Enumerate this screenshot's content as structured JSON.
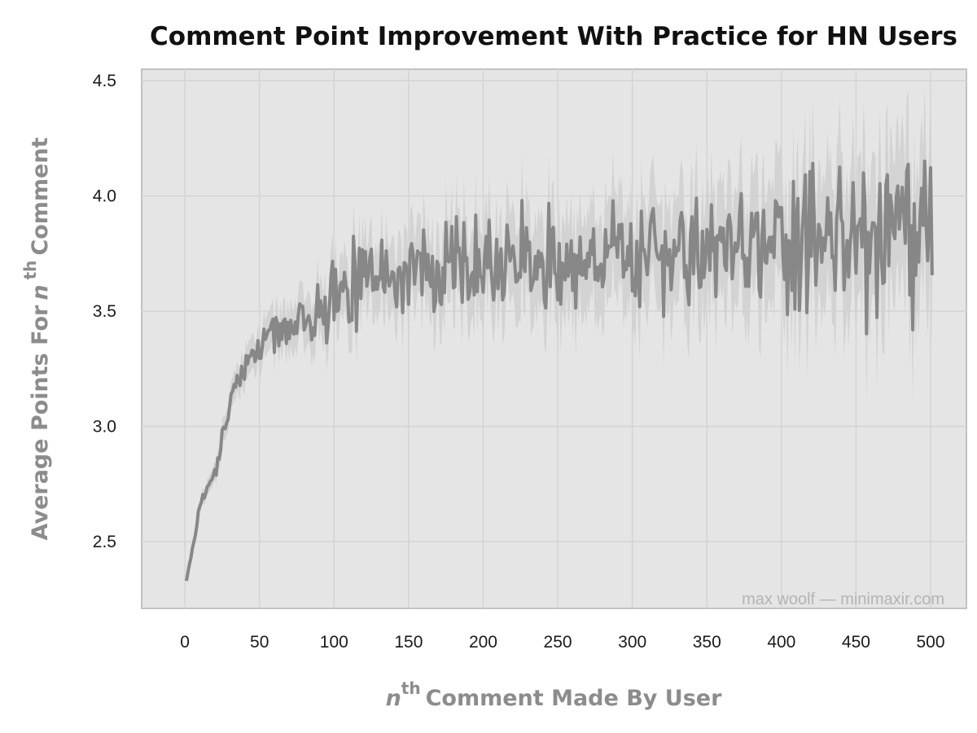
{
  "title": "Comment Point Improvement With Practice for HN Users",
  "watermark": "max woolf — minimaxir.com",
  "chart_data": {
    "type": "line",
    "title": "Comment Point Improvement With Practice for HN Users",
    "xlabel": {
      "n": "n",
      "sup": "th",
      "rest": "Comment Made By User"
    },
    "ylabel": {
      "prefix": "Average Points For",
      "n": "n",
      "sup": "th",
      "suffix": "Comment"
    },
    "xlim": [
      -29,
      524
    ],
    "ylim": [
      2.21,
      4.55
    ],
    "xticks": [
      0,
      50,
      100,
      150,
      200,
      250,
      300,
      350,
      400,
      450,
      500
    ],
    "xtick_labels": [
      "0",
      "50",
      "100",
      "150",
      "200",
      "250",
      "300",
      "350",
      "400",
      "450",
      "500"
    ],
    "yticks": [
      2.5,
      3.0,
      3.5,
      4.0,
      4.5
    ],
    "ytick_labels": [
      "2.5",
      "3.0",
      "3.5",
      "4.0",
      "4.5"
    ],
    "grid": true,
    "legend": "none",
    "colors": {
      "line": "#878787",
      "band": "#d0d0d0",
      "panel": "#e5e5e5",
      "grid": "#d4d4d4",
      "border": "#c2c2c2"
    },
    "series": [
      {
        "x_start": 1,
        "x_step": 10,
        "values": [
          2.33,
          2.68,
          2.82,
          3.12,
          3.28,
          3.35,
          3.4,
          3.43,
          3.47,
          3.51,
          3.57,
          3.6,
          3.62,
          3.64,
          3.66,
          3.68,
          3.69,
          3.7,
          3.7,
          3.71,
          3.71,
          3.72,
          3.72,
          3.72,
          3.73,
          3.73,
          3.73,
          3.74,
          3.74,
          3.74,
          3.74,
          3.75,
          3.75,
          3.75,
          3.76,
          3.76,
          3.76,
          3.77,
          3.77,
          3.78,
          3.78,
          3.79,
          3.8,
          3.81,
          3.82,
          3.82,
          3.82,
          3.81,
          3.81,
          3.81,
          3.81
        ],
        "noise": [
          0.0,
          0.02,
          0.03,
          0.04,
          0.05,
          0.06,
          0.07,
          0.08,
          0.09,
          0.1,
          0.11,
          0.12,
          0.12,
          0.13,
          0.13,
          0.14,
          0.14,
          0.14,
          0.15,
          0.15,
          0.15,
          0.15,
          0.15,
          0.16,
          0.16,
          0.16,
          0.16,
          0.16,
          0.17,
          0.17,
          0.17,
          0.17,
          0.17,
          0.17,
          0.17,
          0.18,
          0.18,
          0.18,
          0.18,
          0.18,
          0.19,
          0.19,
          0.2,
          0.21,
          0.22,
          0.22,
          0.22,
          0.22,
          0.22,
          0.22,
          0.22
        ],
        "band_halfwidth": [
          0.02,
          0.03,
          0.04,
          0.06,
          0.07,
          0.08,
          0.09,
          0.1,
          0.11,
          0.12,
          0.13,
          0.14,
          0.15,
          0.15,
          0.16,
          0.17,
          0.17,
          0.18,
          0.18,
          0.19,
          0.19,
          0.19,
          0.2,
          0.2,
          0.2,
          0.21,
          0.21,
          0.21,
          0.22,
          0.22,
          0.22,
          0.23,
          0.23,
          0.23,
          0.24,
          0.24,
          0.25,
          0.25,
          0.26,
          0.26,
          0.27,
          0.27,
          0.28,
          0.29,
          0.3,
          0.3,
          0.31,
          0.31,
          0.32,
          0.32,
          0.33
        ]
      }
    ]
  }
}
